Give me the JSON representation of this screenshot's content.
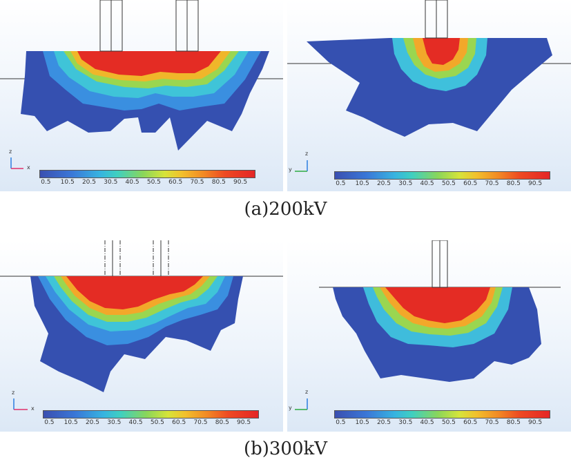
{
  "captions": {
    "a": "(a)200kV",
    "b": "(b)300kV"
  },
  "colorbar": {
    "ticks": [
      "0.5",
      "10.5",
      "20.5",
      "30.5",
      "40.5",
      "50.5",
      "60.5",
      "70.5",
      "80.5",
      "90.5"
    ],
    "colors": {
      "low": "#3a4fb0",
      "mid": "#8ad65a",
      "high": "#e42626"
    }
  },
  "axes": {
    "left": {
      "vertical": "z",
      "horizontal": "x"
    },
    "right": {
      "vertical": "z",
      "horizontal": "y"
    }
  }
}
